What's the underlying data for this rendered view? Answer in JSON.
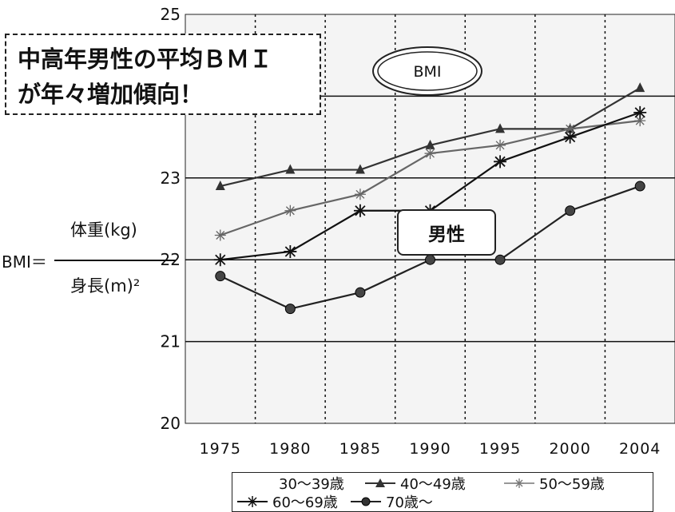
{
  "callout": {
    "text": "中高年男性の平均ＢＭＩ\nが年々増加傾向！"
  },
  "formula": {
    "lhs": "BMI＝",
    "numerator": "体重(kg)",
    "denominator": "身長(m)²"
  },
  "tag_label": "男性",
  "chart_data": {
    "type": "line",
    "title": "BMI",
    "xlabel": "",
    "ylabel": "",
    "categories": [
      "1975",
      "1980",
      "1985",
      "1990",
      "1995",
      "2000",
      "2004"
    ],
    "ylim": [
      20,
      25
    ],
    "yticks": [
      "20",
      "21",
      "22",
      "23",
      "25"
    ],
    "grid": true,
    "legend_position": "bottom",
    "series": [
      {
        "name": "30〜39歳",
        "values": [
          null,
          null,
          null,
          null,
          null,
          null,
          null
        ],
        "color": "#444444",
        "marker": "none"
      },
      {
        "name": "40〜49歳",
        "values": [
          22.9,
          23.1,
          23.1,
          23.4,
          23.6,
          23.6,
          24.1
        ],
        "color": "#333333",
        "marker": "triangle"
      },
      {
        "name": "50〜59歳",
        "values": [
          22.3,
          22.6,
          22.8,
          23.3,
          23.4,
          23.6,
          23.7
        ],
        "color": "#666666",
        "marker": "star"
      },
      {
        "name": "60〜69歳",
        "values": [
          22.0,
          22.1,
          22.6,
          22.6,
          23.2,
          23.5,
          23.8
        ],
        "color": "#111111",
        "marker": "asterisk"
      },
      {
        "name": "70歳〜",
        "values": [
          21.8,
          21.4,
          21.6,
          22.0,
          22.0,
          22.6,
          22.9
        ],
        "color": "#222222",
        "marker": "circle"
      }
    ]
  }
}
